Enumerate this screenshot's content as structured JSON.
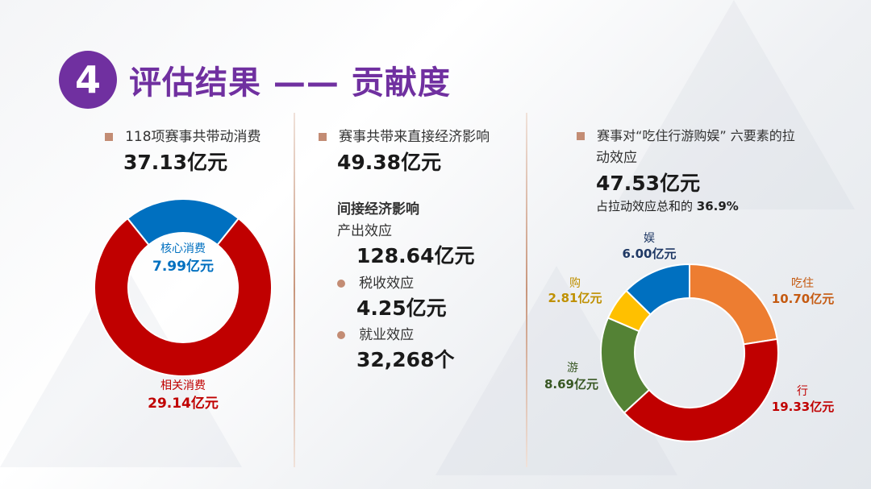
{
  "slide": {
    "number": "4",
    "title": "评估结果 —— 贡献度",
    "purple": "#7030a0"
  },
  "col1": {
    "label": "118项赛事共带动消费",
    "value": "37.13亿元"
  },
  "col2": {
    "label": "赛事共带来直接经济影响",
    "value": "49.38亿元",
    "indirect_title": "间接经济影响",
    "output_label": "产出效应",
    "output_value": "128.64亿元",
    "tax_label": "税收效应",
    "tax_value": "4.25亿元",
    "jobs_label": "就业效应",
    "jobs_value": "32,268个"
  },
  "col3": {
    "label_line1": "赛事对“吃住行游购娱” 六要素的拉",
    "label_line2": "动效应",
    "value": "47.53亿元",
    "share_prefix": "占拉动效应总和的",
    "share_value": "36.9%"
  },
  "chart_data": [
    {
      "type": "pie",
      "donut": true,
      "categories": [
        "核心消费",
        "相关消费"
      ],
      "values": [
        7.99,
        29.14
      ],
      "value_labels": [
        "7.99亿元",
        "29.14亿元"
      ],
      "colors": [
        "#0070c0",
        "#c00000"
      ]
    },
    {
      "type": "pie",
      "donut": true,
      "categories": [
        "吃住",
        "行",
        "游",
        "购",
        "娱"
      ],
      "values": [
        10.7,
        19.33,
        8.69,
        2.81,
        6.0
      ],
      "value_labels": [
        "10.70亿元",
        "19.33亿元",
        "8.69亿元",
        "2.81亿元",
        "6.00亿元"
      ],
      "colors": [
        "#ed7d31",
        "#c00000",
        "#548235",
        "#ffc000",
        "#0070c0"
      ],
      "label_colors": [
        "#c55a11",
        "#c00000",
        "#385723",
        "#bf9000",
        "#1f3864"
      ]
    }
  ]
}
